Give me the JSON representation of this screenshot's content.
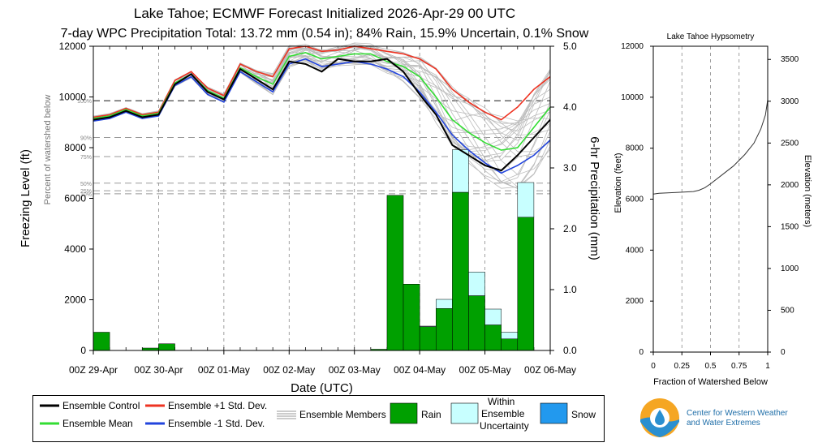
{
  "title": "Lake Tahoe; ECMWF Forecast Initialized 2026-Apr-29 00 UTC",
  "subtitle": "7-day WPC Precipitation Total: 13.72 mm (0.54 in);  84% Rain, 15.9% Uncertain, 0.1% Snow",
  "colors": {
    "control": "#000000",
    "mean": "#33dd33",
    "plus_sd": "#ee3322",
    "minus_sd": "#2244dd",
    "members": "#bbbbbb",
    "rain": "#00a000",
    "uncertain": "#c8ffff",
    "snow": "#2299ee"
  },
  "chart_data": [
    {
      "type": "line+bar",
      "xlabel": "Date (UTC)",
      "ylabel": "Freezing Level (ft)",
      "y2label": "6-hr Precipitation (mm)",
      "percent_label": "Percent of watershed below",
      "ylim": [
        0,
        12000
      ],
      "y2lim": [
        0,
        5.0
      ],
      "xlim_hours": [
        0,
        168
      ],
      "xticks": [
        "00Z 29-Apr",
        "00Z 30-Apr",
        "00Z 01-May",
        "00Z 02-May",
        "00Z 03-May",
        "00Z 04-May",
        "00Z 05-May",
        "00Z 06-May"
      ],
      "yticks": [
        "0",
        "2000",
        "4000",
        "6000",
        "8000",
        "10000",
        "12000"
      ],
      "y2ticks": [
        "0.0",
        "1.0",
        "2.0",
        "3.0",
        "4.0",
        "5.0"
      ],
      "percent_levels": [
        {
          "label": "100%",
          "value": 9850
        },
        {
          "label": "90%",
          "value": 8400
        },
        {
          "label": "75%",
          "value": 7650
        },
        {
          "label": "50%",
          "value": 6600
        },
        {
          "label": "25%",
          "value": 6300
        },
        {
          "label": "10%",
          "value": 6180
        }
      ],
      "series": [
        {
          "name": "Ensemble Control",
          "hours": [
            0,
            6,
            12,
            18,
            24,
            30,
            36,
            42,
            48,
            54,
            60,
            66,
            72,
            78,
            84,
            90,
            96,
            102,
            108,
            114,
            120,
            126,
            132,
            138,
            144,
            150,
            156,
            162,
            168
          ],
          "values": [
            9100,
            9200,
            9450,
            9200,
            9300,
            10500,
            10900,
            10200,
            9900,
            11100,
            10700,
            10300,
            11400,
            11300,
            11000,
            11500,
            11400,
            11400,
            11500,
            11000,
            10100,
            9300,
            8100,
            7700,
            7300,
            7100,
            7700,
            8400,
            9100
          ]
        },
        {
          "name": "Ensemble Mean",
          "hours": [
            0,
            6,
            12,
            18,
            24,
            30,
            36,
            42,
            48,
            54,
            60,
            66,
            72,
            78,
            84,
            90,
            96,
            102,
            108,
            114,
            120,
            126,
            132,
            138,
            144,
            150,
            156,
            162,
            168
          ],
          "values": [
            9150,
            9250,
            9500,
            9250,
            9350,
            10550,
            10900,
            10250,
            9950,
            11150,
            10800,
            10500,
            11600,
            11750,
            11500,
            11600,
            11700,
            11700,
            11400,
            11200,
            10800,
            10000,
            9100,
            8600,
            8200,
            7900,
            8000,
            8800,
            9600
          ]
        },
        {
          "name": "Ensemble +1 Std. Dev.",
          "hours": [
            0,
            6,
            12,
            18,
            24,
            30,
            36,
            42,
            48,
            54,
            60,
            66,
            72,
            78,
            84,
            90,
            96,
            102,
            108,
            114,
            120,
            126,
            132,
            138,
            144,
            150,
            156,
            162,
            168
          ],
          "values": [
            9200,
            9300,
            9550,
            9300,
            9400,
            10650,
            11000,
            10350,
            10050,
            11300,
            11000,
            10800,
            11900,
            12000,
            11800,
            11850,
            12000,
            11900,
            11800,
            11700,
            11500,
            11100,
            10300,
            9800,
            9400,
            9100,
            9600,
            10300,
            10800
          ]
        },
        {
          "name": "Ensemble -1 Std. Dev.",
          "hours": [
            0,
            6,
            12,
            18,
            24,
            30,
            36,
            42,
            48,
            54,
            60,
            66,
            72,
            78,
            84,
            90,
            96,
            102,
            108,
            114,
            120,
            126,
            132,
            138,
            144,
            150,
            156,
            162,
            168
          ],
          "values": [
            9050,
            9150,
            9400,
            9150,
            9250,
            10450,
            10800,
            10100,
            9800,
            11000,
            10600,
            10200,
            11300,
            11500,
            11200,
            11300,
            11400,
            11300,
            11100,
            10800,
            10200,
            9400,
            8500,
            7900,
            7400,
            7000,
            7300,
            7700,
            8300
          ]
        }
      ],
      "ensemble_members": "Ensemble Members",
      "precip_bars": [
        {
          "hour": 0,
          "rain": 0.3,
          "uncertain": 0.0,
          "snow": 0.0
        },
        {
          "hour": 18,
          "rain": 0.04,
          "uncertain": 0.0,
          "snow": 0.0
        },
        {
          "hour": 24,
          "rain": 0.11,
          "uncertain": 0.0,
          "snow": 0.0
        },
        {
          "hour": 102,
          "rain": 0.02,
          "uncertain": 0.0,
          "snow": 0.0
        },
        {
          "hour": 108,
          "rain": 2.55,
          "uncertain": 0.0,
          "snow": 0.0
        },
        {
          "hour": 114,
          "rain": 1.09,
          "uncertain": 0.0,
          "snow": 0.0
        },
        {
          "hour": 120,
          "rain": 0.39,
          "uncertain": 0.01,
          "snow": 0.0
        },
        {
          "hour": 126,
          "rain": 0.69,
          "uncertain": 0.15,
          "snow": 0.0
        },
        {
          "hour": 132,
          "rain": 2.6,
          "uncertain": 0.7,
          "snow": 0.0
        },
        {
          "hour": 138,
          "rain": 0.9,
          "uncertain": 0.39,
          "snow": 0.0
        },
        {
          "hour": 144,
          "rain": 0.42,
          "uncertain": 0.26,
          "snow": 0.0
        },
        {
          "hour": 150,
          "rain": 0.19,
          "uncertain": 0.11,
          "snow": 0.0
        },
        {
          "hour": 156,
          "rain": 2.19,
          "uncertain": 0.57,
          "snow": 0.0
        }
      ]
    },
    {
      "type": "line",
      "title": "Lake Tahoe Hypsometry",
      "xlabel": "Fraction of Watershed Below",
      "ylabel": "Elevation (feet)",
      "y2label": "Elevation (meters)",
      "xlim": [
        0,
        1
      ],
      "ylim": [
        0,
        12000
      ],
      "xticks": [
        "0",
        "0.25",
        "0.5",
        "0.75",
        "1"
      ],
      "yticks": [
        "0",
        "2000",
        "4000",
        "6000",
        "8000",
        "10000",
        "12000"
      ],
      "y2ticks": [
        "0",
        "500",
        "1000",
        "1500",
        "2000",
        "2500",
        "3000",
        "3500"
      ],
      "x": [
        0,
        0.05,
        0.2,
        0.35,
        0.4,
        0.45,
        0.5,
        0.6,
        0.7,
        0.8,
        0.88,
        0.94,
        0.98,
        1.0
      ],
      "y": [
        6200,
        6230,
        6260,
        6300,
        6350,
        6450,
        6600,
        6950,
        7300,
        7750,
        8200,
        8750,
        9300,
        9900
      ]
    }
  ],
  "legend": {
    "control": "Ensemble Control",
    "plus": "Ensemble +1 Std. Dev.",
    "members": "Ensemble Members",
    "rain": "Rain",
    "within": "Within",
    "ensemble": "Ensemble",
    "uncertainty": "Uncertainty",
    "snow": "Snow",
    "mean": "Ensemble Mean",
    "minus": "Ensemble -1 Std. Dev."
  },
  "logo": {
    "line1": "Center for Western Weather",
    "line2": "and Water Extremes"
  }
}
